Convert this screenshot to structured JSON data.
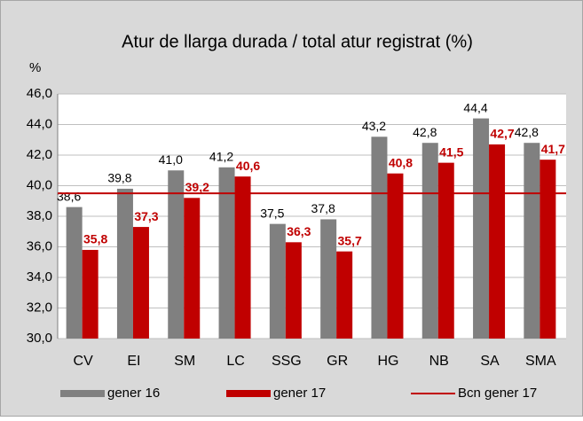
{
  "chart_data": {
    "type": "bar",
    "title": "Atur de llarga durada / total atur registrat (%)",
    "y_label": "%",
    "categories": [
      "CV",
      "EI",
      "SM",
      "LC",
      "SSG",
      "GR",
      "HG",
      "NB",
      "SA",
      "SMA"
    ],
    "series": [
      {
        "name": "gener 16",
        "color": "#808080",
        "values": [
          38.6,
          39.8,
          41.0,
          41.2,
          37.5,
          37.8,
          43.2,
          42.8,
          44.4,
          42.8
        ],
        "value_labels": [
          "38,6",
          "39,8",
          "41,0",
          "41,2",
          "37,5",
          "37,8",
          "43,2",
          "42,8",
          "44,4",
          "42,8"
        ]
      },
      {
        "name": "gener 17",
        "color": "#c00000",
        "values": [
          35.8,
          37.3,
          39.2,
          40.6,
          36.3,
          35.7,
          40.8,
          41.5,
          42.7,
          41.7
        ],
        "value_labels": [
          "35,8",
          "37,3",
          "39,2",
          "40,6",
          "36,3",
          "35,7",
          "40,8",
          "41,5",
          "42,7",
          "41,7"
        ]
      }
    ],
    "reference": {
      "name": "Bcn gener 17",
      "value": 39.5,
      "color": "#c00000"
    },
    "ylim": [
      30,
      46
    ],
    "yticks": [
      {
        "value": 30,
        "label": "30,0"
      },
      {
        "value": 32,
        "label": "32,0"
      },
      {
        "value": 34,
        "label": "34,0"
      },
      {
        "value": 36,
        "label": "36,0"
      },
      {
        "value": 38,
        "label": "38,0"
      },
      {
        "value": 40,
        "label": "40,0"
      },
      {
        "value": 42,
        "label": "42,0"
      },
      {
        "value": 44,
        "label": "44,0"
      },
      {
        "value": 46,
        "label": "46,0"
      }
    ],
    "grid": true
  }
}
